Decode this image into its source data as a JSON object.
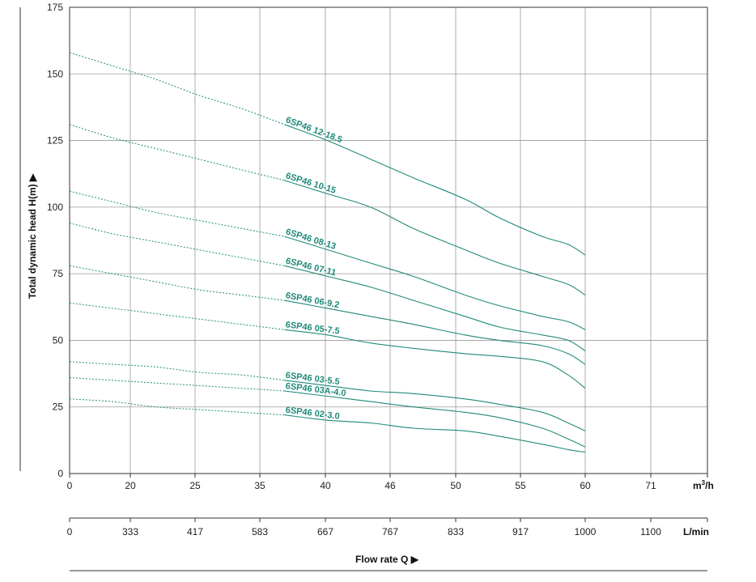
{
  "chart_data": {
    "type": "line",
    "title": "",
    "ylabel": "Total dynamic head H(m) ▶",
    "xlabel": "Flow rate Q ▶",
    "ylim": [
      0,
      175
    ],
    "yticks": [
      0,
      25,
      50,
      75,
      100,
      125,
      150,
      175
    ],
    "xlim": [
      0,
      75
    ],
    "x_top_unit": "m³/h",
    "x_top_ticks": [
      "0",
      "20",
      "25",
      "35",
      "40",
      "46",
      "50",
      "55",
      "60",
      "71"
    ],
    "x_bottom_unit": "L/min",
    "x_bottom_ticks": [
      "0",
      "333",
      "417",
      "583",
      "667",
      "767",
      "833",
      "917",
      "1000",
      "1100"
    ],
    "grid": true,
    "series_style": "dashed from 0 to 25 m³/h, solid from 25 to 60 m³/h",
    "curve_color": "#1f8a7a",
    "series": [
      {
        "name": "6SP46 12-18.5",
        "x": [
          0,
          5,
          10,
          15,
          20,
          25,
          30,
          35,
          40,
          46,
          50,
          55,
          58,
          60
        ],
        "y": [
          158,
          153,
          148,
          142,
          137,
          131,
          125,
          118,
          111,
          103,
          96,
          89,
          86,
          82
        ]
      },
      {
        "name": "6SP46 10-15",
        "x": [
          0,
          5,
          10,
          15,
          20,
          25,
          30,
          35,
          40,
          46,
          50,
          55,
          58,
          60
        ],
        "y": [
          131,
          126,
          122,
          118,
          114,
          110,
          105,
          100,
          92,
          84,
          79,
          74,
          71,
          67
        ]
      },
      {
        "name": "6SP46 08-13",
        "x": [
          0,
          5,
          10,
          15,
          20,
          25,
          30,
          35,
          40,
          46,
          50,
          55,
          58,
          60
        ],
        "y": [
          106,
          102,
          98,
          95,
          92,
          89,
          84,
          79,
          74,
          67,
          63,
          59,
          57,
          54
        ]
      },
      {
        "name": "6SP46 07-11",
        "x": [
          0,
          5,
          10,
          15,
          20,
          25,
          30,
          35,
          40,
          46,
          50,
          55,
          58,
          60
        ],
        "y": [
          94,
          90,
          87,
          84,
          81,
          78,
          74,
          70,
          65,
          59,
          55,
          52,
          50,
          46
        ]
      },
      {
        "name": "6SP46 06-9.2",
        "x": [
          0,
          5,
          10,
          15,
          20,
          25,
          30,
          35,
          40,
          46,
          50,
          55,
          58,
          60
        ],
        "y": [
          78,
          75,
          72,
          69,
          67,
          65,
          62,
          59,
          56,
          52,
          50,
          48,
          45,
          41
        ]
      },
      {
        "name": "6SP46 05-7.5",
        "x": [
          0,
          5,
          10,
          15,
          20,
          25,
          30,
          35,
          40,
          46,
          50,
          55,
          58,
          60
        ],
        "y": [
          64,
          62,
          60,
          58,
          56,
          54,
          52,
          49,
          47,
          45,
          44,
          42,
          37,
          32
        ]
      },
      {
        "name": "6SP46 03-5.5",
        "x": [
          0,
          5,
          10,
          15,
          20,
          25,
          30,
          35,
          40,
          46,
          50,
          55,
          58,
          60
        ],
        "y": [
          42,
          41,
          40,
          38,
          37,
          35,
          33,
          31,
          30,
          28,
          26,
          23,
          19,
          16
        ]
      },
      {
        "name": "6SP46 03A-4.0",
        "x": [
          0,
          5,
          10,
          15,
          20,
          25,
          30,
          35,
          40,
          46,
          50,
          55,
          58,
          60
        ],
        "y": [
          36,
          35,
          34,
          33,
          32,
          31,
          29,
          27,
          25,
          23,
          21,
          17,
          13,
          10
        ]
      },
      {
        "name": "6SP46 02-3.0",
        "x": [
          0,
          5,
          10,
          15,
          20,
          25,
          30,
          35,
          40,
          46,
          50,
          55,
          58,
          60
        ],
        "y": [
          28,
          27,
          25,
          24,
          23,
          22,
          20,
          19,
          17,
          16,
          14,
          11,
          9,
          8
        ]
      }
    ]
  }
}
